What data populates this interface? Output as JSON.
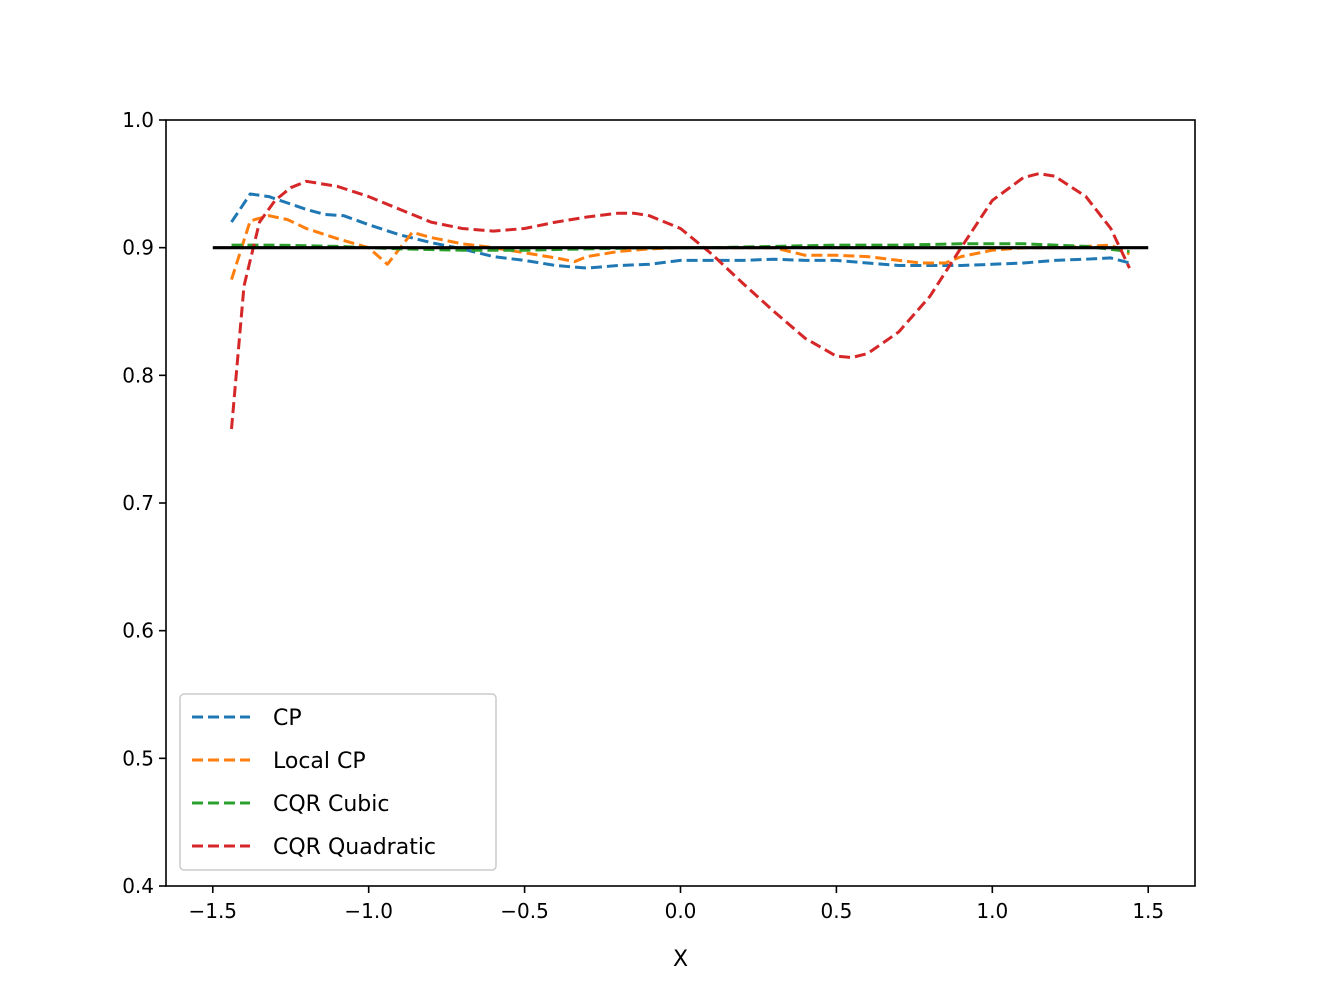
{
  "chart_data": {
    "type": "line",
    "title": "",
    "xlabel": "X",
    "ylabel": "",
    "xlim": [
      -1.65,
      1.65
    ],
    "ylim": [
      0.4,
      1.0
    ],
    "xticks": [
      -1.5,
      -1.0,
      -0.5,
      0.0,
      0.5,
      1.0,
      1.5
    ],
    "xtick_labels": [
      "−1.5",
      "−1.0",
      "−0.5",
      "0.0",
      "0.5",
      "1.0",
      "1.5"
    ],
    "yticks": [
      0.4,
      0.5,
      0.6,
      0.7,
      0.8,
      0.9,
      1.0
    ],
    "ytick_labels": [
      "0.4",
      "0.5",
      "0.6",
      "0.7",
      "0.8",
      "0.9",
      "1.0"
    ],
    "grid": false,
    "legend_position": "lower-left",
    "reference_line": {
      "y": 0.9,
      "x": [
        -1.5,
        1.5
      ],
      "color": "#000000",
      "style": "solid"
    },
    "series": [
      {
        "name": "CP",
        "color": "#1f77b4",
        "style": "dashed",
        "x": [
          -1.44,
          -1.38,
          -1.32,
          -1.26,
          -1.2,
          -1.14,
          -1.08,
          -1.0,
          -0.9,
          -0.8,
          -0.7,
          -0.6,
          -0.5,
          -0.4,
          -0.3,
          -0.2,
          -0.1,
          0.0,
          0.1,
          0.2,
          0.3,
          0.4,
          0.5,
          0.6,
          0.7,
          0.8,
          0.9,
          1.0,
          1.1,
          1.2,
          1.3,
          1.38,
          1.44
        ],
        "values": [
          0.92,
          0.942,
          0.94,
          0.935,
          0.93,
          0.926,
          0.925,
          0.918,
          0.91,
          0.904,
          0.899,
          0.893,
          0.89,
          0.886,
          0.884,
          0.886,
          0.887,
          0.89,
          0.89,
          0.89,
          0.891,
          0.89,
          0.89,
          0.888,
          0.886,
          0.886,
          0.886,
          0.887,
          0.888,
          0.89,
          0.891,
          0.892,
          0.888
        ]
      },
      {
        "name": "Local CP",
        "color": "#ff7f0e",
        "style": "dashed",
        "x": [
          -1.44,
          -1.38,
          -1.32,
          -1.26,
          -1.2,
          -1.1,
          -1.0,
          -0.94,
          -0.86,
          -0.8,
          -0.7,
          -0.6,
          -0.5,
          -0.4,
          -0.34,
          -0.3,
          -0.2,
          -0.1,
          0.0,
          0.1,
          0.2,
          0.3,
          0.4,
          0.5,
          0.6,
          0.7,
          0.77,
          0.85,
          0.9,
          1.0,
          1.1,
          1.2,
          1.3,
          1.38,
          1.44
        ],
        "values": [
          0.875,
          0.921,
          0.925,
          0.922,
          0.915,
          0.907,
          0.9,
          0.887,
          0.912,
          0.908,
          0.903,
          0.9,
          0.896,
          0.892,
          0.889,
          0.893,
          0.897,
          0.899,
          0.9,
          0.9,
          0.9,
          0.9,
          0.894,
          0.894,
          0.893,
          0.89,
          0.888,
          0.888,
          0.893,
          0.898,
          0.9,
          0.9,
          0.901,
          0.902,
          0.895
        ]
      },
      {
        "name": "CQR Cubic",
        "color": "#2ca02c",
        "style": "dashed",
        "x": [
          -1.44,
          -1.3,
          -1.1,
          -0.9,
          -0.7,
          -0.5,
          -0.3,
          -0.1,
          0.1,
          0.3,
          0.5,
          0.7,
          0.9,
          1.1,
          1.3,
          1.44
        ],
        "values": [
          0.902,
          0.902,
          0.901,
          0.899,
          0.898,
          0.898,
          0.899,
          0.9,
          0.9,
          0.901,
          0.902,
          0.902,
          0.903,
          0.903,
          0.901,
          0.897
        ]
      },
      {
        "name": "CQR Quadratic",
        "color": "#d62728",
        "style": "dashed",
        "x": [
          -1.44,
          -1.4,
          -1.35,
          -1.3,
          -1.25,
          -1.2,
          -1.1,
          -1.0,
          -0.9,
          -0.8,
          -0.7,
          -0.6,
          -0.5,
          -0.4,
          -0.3,
          -0.2,
          -0.15,
          -0.1,
          0.0,
          0.1,
          0.2,
          0.3,
          0.4,
          0.5,
          0.55,
          0.6,
          0.7,
          0.8,
          0.9,
          1.0,
          1.1,
          1.15,
          1.2,
          1.3,
          1.38,
          1.44
        ],
        "values": [
          0.758,
          0.87,
          0.92,
          0.937,
          0.947,
          0.952,
          0.948,
          0.94,
          0.93,
          0.92,
          0.915,
          0.913,
          0.915,
          0.92,
          0.924,
          0.927,
          0.927,
          0.925,
          0.915,
          0.895,
          0.872,
          0.85,
          0.829,
          0.815,
          0.814,
          0.817,
          0.834,
          0.862,
          0.9,
          0.937,
          0.955,
          0.958,
          0.956,
          0.94,
          0.915,
          0.884
        ]
      }
    ]
  }
}
